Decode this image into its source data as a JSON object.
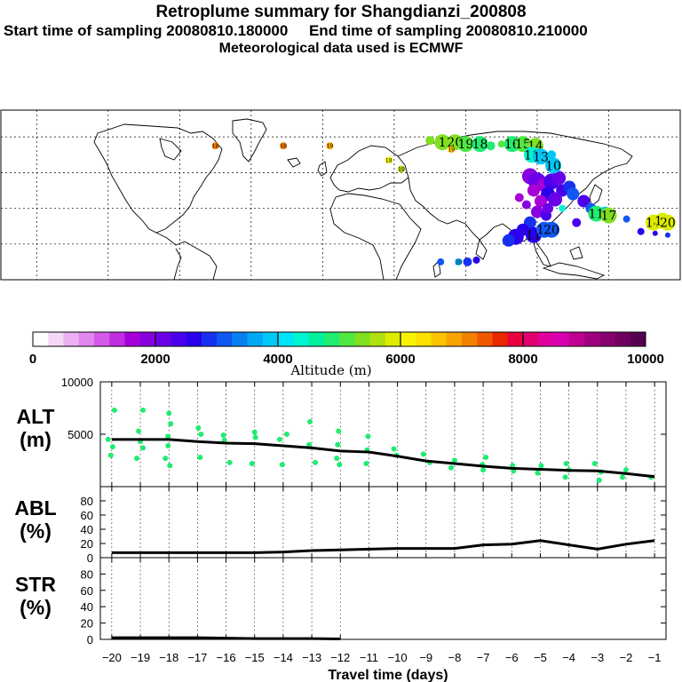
{
  "header": {
    "title": "Retroplume summary for Shangdianzi_200808",
    "start_label": "Start time of sampling 20080810.180000",
    "end_label": "End time of sampling 20080810.210000",
    "met_label": "Meteorological data used is ECMWF"
  },
  "colorbar": {
    "colors": [
      "#ffffff",
      "#f5d8f8",
      "#eab0f2",
      "#e088ee",
      "#d35ae8",
      "#c12ee2",
      "#a800d8",
      "#8800e0",
      "#6a00e8",
      "#4a00ec",
      "#2a00ee",
      "#1830f0",
      "#1058f2",
      "#0880f2",
      "#00a8f4",
      "#00c8f6",
      "#00e4f8",
      "#00f4d0",
      "#00f0a0",
      "#20ec70",
      "#50e840",
      "#80e020",
      "#b0e010",
      "#dcec00",
      "#f8f400",
      "#fce000",
      "#fcc400",
      "#f8a400",
      "#f48000",
      "#f05800",
      "#ec2800",
      "#e80040",
      "#e00070",
      "#e000a0",
      "#d800b0",
      "#c00090",
      "#a00080",
      "#880070",
      "#700060",
      "#580050"
    ],
    "tick_labels": [
      "0",
      "2000",
      "4000",
      "6000",
      "8000",
      "10000"
    ],
    "title": "Altitude (m)"
  },
  "map": {
    "labels": [
      {
        "text": "1",
        "lon": 67,
        "lat": 57,
        "color": "#80e020",
        "big": true
      },
      {
        "text": "20",
        "lon": 74,
        "lat": 57,
        "color": "#80e020",
        "big": true
      },
      {
        "text": "19",
        "lon": 80,
        "lat": 56,
        "color": "#50e840",
        "big": true
      },
      {
        "text": "18",
        "lon": 88,
        "lat": 56,
        "color": "#20ec70",
        "big": true
      },
      {
        "text": "16",
        "lon": 106,
        "lat": 56,
        "color": "#20ec70",
        "big": true
      },
      {
        "text": "15",
        "lon": 112,
        "lat": 56,
        "color": "#50e840",
        "big": true
      },
      {
        "text": "14",
        "lon": 119,
        "lat": 55,
        "color": "#80e020",
        "big": true
      },
      {
        "text": "11",
        "lon": 117,
        "lat": 50,
        "color": "#00f4d0",
        "big": true
      },
      {
        "text": "13",
        "lon": 122,
        "lat": 49,
        "color": "#00c8f6",
        "big": true
      },
      {
        "text": "10",
        "lon": 129,
        "lat": 44,
        "color": "#00c8f6",
        "big": true
      },
      {
        "text": "11",
        "lon": 153,
        "lat": 17,
        "color": "#20ec70",
        "big": true
      },
      {
        "text": "17",
        "lon": 160,
        "lat": 16,
        "color": "#80e020",
        "big": true
      },
      {
        "text": "14",
        "lon": 185,
        "lat": 12,
        "color": "#dcec00",
        "big": true
      },
      {
        "text": "19",
        "lon": 190,
        "lat": 13,
        "color": "#dcec00",
        "big": true
      },
      {
        "text": "20",
        "lon": 193,
        "lat": 12,
        "color": "#dcec00",
        "big": true
      },
      {
        "text": "11",
        "lon": 118,
        "lat": 5,
        "color": "#2a00ee",
        "big": true
      },
      {
        "text": "12",
        "lon": 124,
        "lat": 8,
        "color": "#1058f2",
        "big": true
      },
      {
        "text": "20",
        "lon": 128,
        "lat": 8,
        "color": "#1058f2",
        "big": true
      },
      {
        "text": "20",
        "lon": 76,
        "lat": -10,
        "color": "#00a8f4",
        "big": false
      },
      {
        "text": "18",
        "lon": -22,
        "lat": 55,
        "color": "#f48000",
        "big": false
      },
      {
        "text": "18",
        "lon": -60,
        "lat": 55,
        "color": "#f48000",
        "big": false
      },
      {
        "text": "19",
        "lon": 4,
        "lat": 55,
        "color": "#f8a400",
        "big": false
      },
      {
        "text": "18",
        "lon": 37,
        "lat": 47,
        "color": "#f8f400",
        "big": false
      },
      {
        "text": "19",
        "lon": 44,
        "lat": 42,
        "color": "#b0e010",
        "big": false
      },
      {
        "text": "19",
        "lon": 72,
        "lat": 53,
        "color": "#fcc400",
        "big": false
      }
    ]
  },
  "chart_data": [
    {
      "type": "scatter",
      "panel": "ALT",
      "ylabel": "ALT\n(m)",
      "ylabel_lines": [
        "ALT",
        "(m)"
      ],
      "ylim": [
        0,
        10000
      ],
      "yticks": [
        "5000",
        "10000"
      ],
      "x": [
        -20,
        -19,
        -18,
        -17,
        -16,
        -15,
        -14,
        -13,
        -12,
        -11,
        -10,
        -9,
        -8,
        -7,
        -6,
        -5,
        -4,
        -3,
        -2,
        -1
      ],
      "line_values": [
        4500,
        4500,
        4500,
        4300,
        4150,
        4100,
        3900,
        3700,
        3400,
        3300,
        2900,
        2450,
        2200,
        1950,
        1750,
        1650,
        1550,
        1500,
        1250,
        950
      ],
      "point_color": "#20ec70",
      "points": [
        [
          -20,
          4500
        ],
        [
          -20,
          3800
        ],
        [
          -20,
          3000
        ],
        [
          -20,
          7300
        ],
        [
          -19,
          5300
        ],
        [
          -19,
          4300
        ],
        [
          -19,
          3700
        ],
        [
          -19,
          2700
        ],
        [
          -19,
          7300
        ],
        [
          -18,
          4800
        ],
        [
          -18,
          3900
        ],
        [
          -18,
          2700
        ],
        [
          -18,
          2000
        ],
        [
          -18,
          7000
        ],
        [
          -18,
          6000
        ],
        [
          -17,
          5600
        ],
        [
          -17,
          5000
        ],
        [
          -17,
          2800
        ],
        [
          -16,
          4900
        ],
        [
          -16,
          4400
        ],
        [
          -16,
          2300
        ],
        [
          -15,
          5200
        ],
        [
          -15,
          4700
        ],
        [
          -15,
          2200
        ],
        [
          -14,
          5000
        ],
        [
          -14,
          4500
        ],
        [
          -14,
          2100
        ],
        [
          -13,
          4000
        ],
        [
          -13,
          2300
        ],
        [
          -13,
          6200
        ],
        [
          -12,
          5300
        ],
        [
          -12,
          4000
        ],
        [
          -12,
          2700
        ],
        [
          -12,
          2100
        ],
        [
          -11,
          4800
        ],
        [
          -11,
          3500
        ],
        [
          -11,
          2200
        ],
        [
          -10,
          3600
        ],
        [
          -10,
          3000
        ],
        [
          -9,
          3100
        ],
        [
          -9,
          2300
        ],
        [
          -8,
          2500
        ],
        [
          -8,
          1800
        ],
        [
          -7,
          2100
        ],
        [
          -7,
          1600
        ],
        [
          -7,
          2800
        ],
        [
          -6,
          2000
        ],
        [
          -6,
          1500
        ],
        [
          -5,
          2000
        ],
        [
          -5,
          1300
        ],
        [
          -4,
          2200
        ],
        [
          -4,
          1600
        ],
        [
          -4,
          900
        ],
        [
          -3,
          2200
        ],
        [
          -3,
          1400
        ],
        [
          -3,
          600
        ],
        [
          -2,
          1600
        ],
        [
          -2,
          900
        ],
        [
          -1,
          900
        ]
      ]
    },
    {
      "type": "line",
      "panel": "ABL",
      "ylabel": "ABL\n(%)",
      "ylabel_lines": [
        "ABL",
        "(%)"
      ],
      "ylim": [
        0,
        100
      ],
      "yticks": [
        "0",
        "20",
        "40",
        "60",
        "80"
      ],
      "x": [
        -20,
        -19,
        -18,
        -17,
        -16,
        -15,
        -14,
        -13,
        -12,
        -11,
        -10,
        -9,
        -8,
        -7,
        -6,
        -5,
        -4,
        -3,
        -2,
        -1
      ],
      "values": [
        7,
        7,
        7,
        7,
        7,
        7,
        8,
        10,
        11,
        12,
        13,
        13,
        13,
        18,
        19,
        24,
        18,
        12,
        19,
        24
      ]
    },
    {
      "type": "line",
      "panel": "STR",
      "ylabel": "STR\n(%)",
      "ylabel_lines": [
        "STR",
        "(%)"
      ],
      "ylim": [
        0,
        100
      ],
      "yticks": [
        "0",
        "20",
        "40",
        "60",
        "80"
      ],
      "x": [
        -20,
        -19,
        -18,
        -17,
        -16,
        -15,
        -14,
        -13,
        -12
      ],
      "values": [
        2,
        2,
        2,
        2,
        1.5,
        1,
        1,
        1,
        0.5
      ]
    }
  ],
  "xaxis": {
    "tick_labels": [
      "−20",
      "−19",
      "−18",
      "−17",
      "−16",
      "−15",
      "−14",
      "−13",
      "−12",
      "−11",
      "−10",
      "−9",
      "−8",
      "−7",
      "−6",
      "−5",
      "−4",
      "−3",
      "−2",
      "−1"
    ],
    "title": "Travel time (days)"
  }
}
